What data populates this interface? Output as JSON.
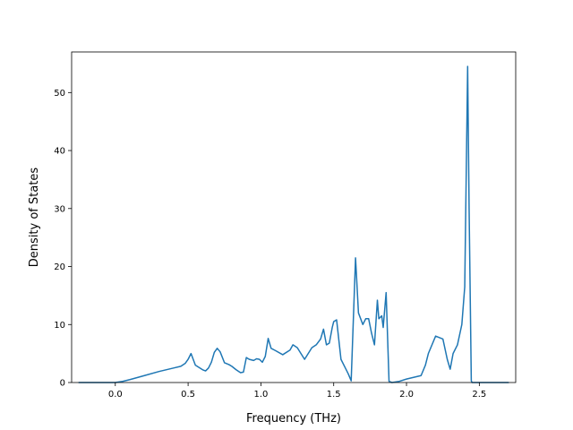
{
  "chart_data": {
    "type": "line",
    "title": "",
    "xlabel": "Frequency (THz)",
    "ylabel": "Density of States",
    "xlim": [
      -0.3,
      2.75
    ],
    "ylim": [
      0,
      57
    ],
    "xticks": [
      0.0,
      0.5,
      1.0,
      1.5,
      2.0,
      2.5
    ],
    "xtick_labels": [
      "0.0",
      "0.5",
      "1.0",
      "1.5",
      "2.0",
      "2.5"
    ],
    "yticks": [
      0,
      10,
      20,
      30,
      40,
      50
    ],
    "ytick_labels": [
      "0",
      "10",
      "20",
      "30",
      "40",
      "50"
    ],
    "grid": false,
    "legend": "none",
    "series_color": "#1f77b4",
    "series": [
      {
        "x": [
          -0.25,
          -0.05,
          0.0,
          0.05,
          0.1,
          0.2,
          0.3,
          0.4,
          0.45,
          0.48,
          0.5,
          0.52,
          0.55,
          0.6,
          0.62,
          0.64,
          0.66,
          0.68,
          0.7,
          0.72,
          0.75,
          0.78,
          0.8,
          0.83,
          0.86,
          0.88,
          0.9,
          0.92,
          0.95,
          0.97,
          0.99,
          1.01,
          1.03,
          1.05,
          1.07,
          1.1,
          1.15,
          1.2,
          1.22,
          1.25,
          1.27,
          1.3,
          1.35,
          1.38,
          1.41,
          1.43,
          1.45,
          1.47,
          1.49,
          1.5,
          1.52,
          1.55,
          1.58,
          1.6,
          1.62,
          1.65,
          1.67,
          1.7,
          1.72,
          1.74,
          1.76,
          1.78,
          1.8,
          1.81,
          1.83,
          1.84,
          1.86,
          1.88,
          1.9,
          1.95,
          2.0,
          2.1,
          2.13,
          2.15,
          2.2,
          2.25,
          2.28,
          2.3,
          2.32,
          2.35,
          2.38,
          2.4,
          2.42,
          2.43,
          2.445,
          2.45,
          2.5,
          2.7
        ],
        "y": [
          0,
          0,
          0,
          0.2,
          0.5,
          1.2,
          1.9,
          2.5,
          2.8,
          3.3,
          4.0,
          5.0,
          3.0,
          2.2,
          2.0,
          2.5,
          3.5,
          5.2,
          5.9,
          5.3,
          3.4,
          3.1,
          2.8,
          2.2,
          1.7,
          1.8,
          4.3,
          4.0,
          3.8,
          4.1,
          4.0,
          3.5,
          4.5,
          7.6,
          5.9,
          5.5,
          4.8,
          5.6,
          6.5,
          6.0,
          5.2,
          4.0,
          6.0,
          6.5,
          7.5,
          9.2,
          6.5,
          6.8,
          9.5,
          10.5,
          10.8,
          4.0,
          2.5,
          1.5,
          0.3,
          21.5,
          12.0,
          10.0,
          11.0,
          11.0,
          8.5,
          6.5,
          14.2,
          11.0,
          11.5,
          9.5,
          15.5,
          0.2,
          0,
          0.2,
          0.6,
          1.2,
          3.0,
          5.0,
          8.0,
          7.5,
          4.0,
          2.3,
          5.0,
          6.5,
          10.0,
          16.5,
          54.5,
          30.0,
          0.3,
          0,
          0,
          0
        ]
      }
    ]
  }
}
